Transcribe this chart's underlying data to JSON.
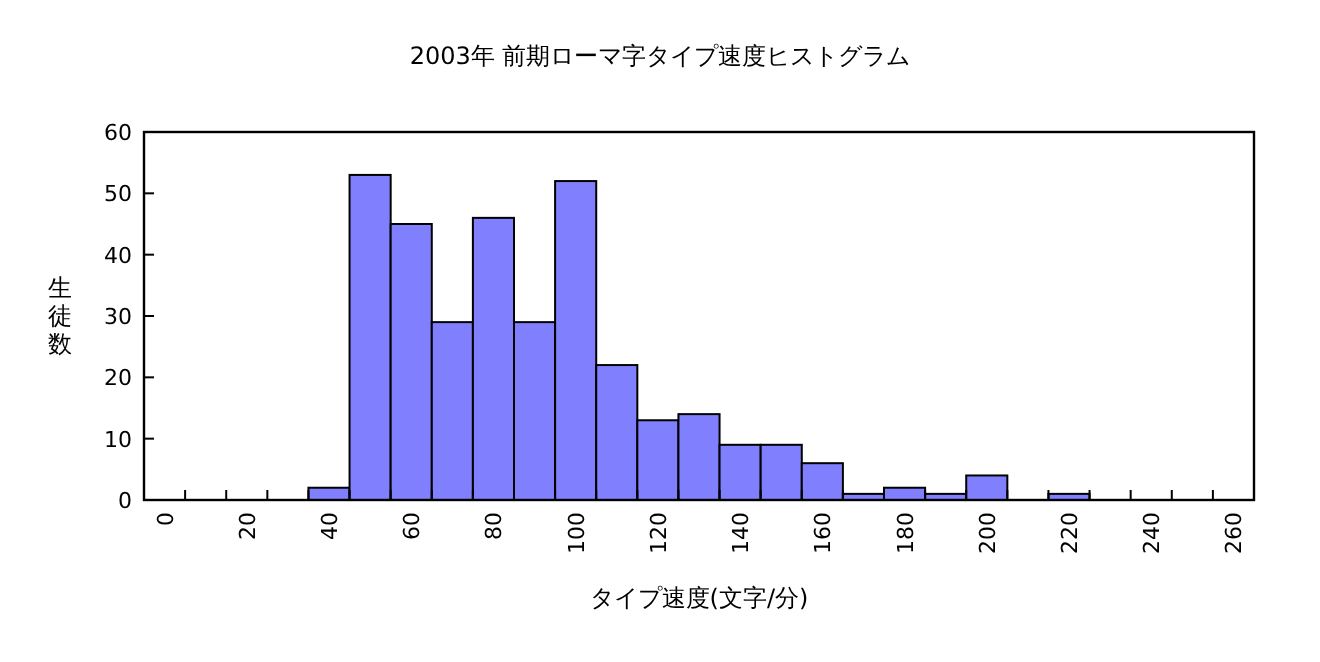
{
  "chart_data": {
    "type": "bar",
    "title": "2003年 前期ローマ字タイプ速度ヒストグラム",
    "xlabel": "タイプ速度(文字/分)",
    "ylabel": "生徒数",
    "categories": [
      "0",
      null,
      "20",
      null,
      "40",
      null,
      "60",
      null,
      "80",
      null,
      "100",
      null,
      "120",
      null,
      "140",
      null,
      "160",
      null,
      "180",
      null,
      "200",
      null,
      "220",
      null,
      "240",
      null,
      "260"
    ],
    "values": [
      0,
      0,
      0,
      0,
      2,
      53,
      45,
      29,
      46,
      29,
      52,
      22,
      13,
      14,
      9,
      9,
      6,
      1,
      2,
      1,
      4,
      0,
      1,
      0,
      0,
      0,
      0
    ],
    "color": "#8080ff",
    "ylim": [
      0,
      60
    ],
    "yticks": [
      0,
      10,
      20,
      30,
      40,
      50,
      60
    ]
  }
}
